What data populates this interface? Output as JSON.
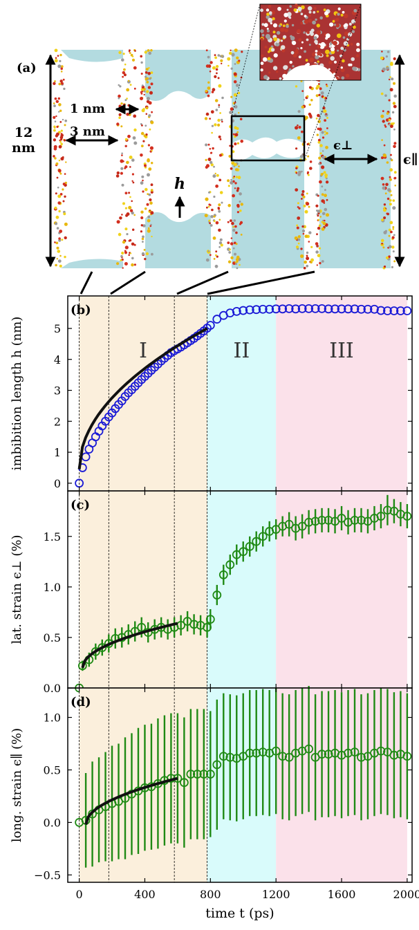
{
  "colors": {
    "regime1": "#fbefdc",
    "regime2": "#d9fbfb",
    "regime3": "#fbe1ea",
    "water": "#b3dbe0",
    "series_b": "#1a1ad6",
    "series_cd": "#1f8a14",
    "fit": "#111111"
  },
  "panel_a": {
    "label": "(a)",
    "height_label_1": "12",
    "height_label_2": "nm",
    "gap_label": "1 nm",
    "width_label": "3 nm",
    "h_label": "h",
    "strain_perp_label": "ϵ⊥",
    "strain_par_label": "ϵ∥"
  },
  "chart_data": [
    {
      "type": "scatter",
      "panel": "(b)",
      "ylabel": "imbibition length h (nm)",
      "ylim": [
        -0.25,
        6.05
      ],
      "yticks": [
        0,
        1,
        2,
        3,
        4,
        5
      ],
      "xlim": [
        -70,
        2030
      ],
      "regimes": [
        {
          "label": "I",
          "x0": 0,
          "x1": 780
        },
        {
          "label": "II",
          "x0": 780,
          "x1": 1200
        },
        {
          "label": "III",
          "x0": 1200,
          "x1": 2000
        }
      ],
      "vlines": [
        0,
        180,
        580,
        780
      ],
      "x": [
        0,
        20,
        40,
        60,
        80,
        100,
        120,
        140,
        160,
        180,
        200,
        220,
        240,
        260,
        280,
        300,
        320,
        340,
        360,
        380,
        400,
        420,
        440,
        460,
        480,
        500,
        520,
        540,
        560,
        580,
        600,
        620,
        640,
        660,
        680,
        700,
        720,
        740,
        760,
        780,
        800,
        840,
        880,
        920,
        960,
        1000,
        1040,
        1080,
        1120,
        1160,
        1200,
        1240,
        1280,
        1320,
        1360,
        1400,
        1440,
        1480,
        1520,
        1560,
        1600,
        1640,
        1680,
        1720,
        1760,
        1800,
        1840,
        1880,
        1920,
        1960,
        2000
      ],
      "y": [
        0.0,
        0.5,
        0.85,
        1.1,
        1.3,
        1.5,
        1.68,
        1.85,
        2.0,
        2.14,
        2.27,
        2.41,
        2.54,
        2.66,
        2.8,
        2.92,
        3.02,
        3.13,
        3.24,
        3.35,
        3.45,
        3.55,
        3.65,
        3.75,
        3.85,
        3.95,
        4.04,
        4.13,
        4.22,
        4.28,
        4.34,
        4.4,
        4.47,
        4.54,
        4.61,
        4.68,
        4.76,
        4.84,
        4.92,
        5.01,
        5.1,
        5.3,
        5.42,
        5.5,
        5.55,
        5.58,
        5.6,
        5.61,
        5.62,
        5.62,
        5.63,
        5.63,
        5.64,
        5.63,
        5.64,
        5.64,
        5.64,
        5.64,
        5.63,
        5.63,
        5.63,
        5.63,
        5.63,
        5.62,
        5.62,
        5.62,
        5.58,
        5.57,
        5.57,
        5.57,
        5.57
      ],
      "fit": {
        "x0": 0,
        "x1": 780,
        "y0": 0.45,
        "y1": 5.0
      }
    },
    {
      "type": "scatter",
      "panel": "(c)",
      "ylabel": "lat. strain ϵ⊥ (%)",
      "ylim": [
        0,
        1.95
      ],
      "yticks": [
        0.0,
        0.5,
        1.0,
        1.5
      ],
      "x": [
        0,
        20,
        60,
        100,
        140,
        180,
        220,
        260,
        300,
        340,
        380,
        420,
        460,
        500,
        540,
        580,
        620,
        660,
        700,
        740,
        780,
        800,
        840,
        880,
        920,
        960,
        1000,
        1040,
        1080,
        1120,
        1160,
        1200,
        1240,
        1280,
        1320,
        1360,
        1400,
        1440,
        1480,
        1520,
        1560,
        1600,
        1640,
        1680,
        1720,
        1760,
        1800,
        1840,
        1880,
        1920,
        1960,
        2000
      ],
      "y": [
        0.0,
        0.22,
        0.28,
        0.36,
        0.4,
        0.44,
        0.49,
        0.5,
        0.53,
        0.56,
        0.6,
        0.55,
        0.58,
        0.6,
        0.58,
        0.6,
        0.62,
        0.66,
        0.63,
        0.62,
        0.6,
        0.68,
        0.92,
        1.12,
        1.22,
        1.32,
        1.35,
        1.4,
        1.45,
        1.5,
        1.55,
        1.57,
        1.6,
        1.62,
        1.58,
        1.6,
        1.64,
        1.65,
        1.66,
        1.66,
        1.65,
        1.68,
        1.64,
        1.66,
        1.66,
        1.65,
        1.68,
        1.7,
        1.76,
        1.75,
        1.72,
        1.7
      ],
      "err": [
        0.0,
        0.05,
        0.07,
        0.08,
        0.08,
        0.09,
        0.1,
        0.1,
        0.1,
        0.1,
        0.1,
        0.1,
        0.1,
        0.1,
        0.1,
        0.1,
        0.1,
        0.1,
        0.1,
        0.1,
        0.1,
        0.1,
        0.1,
        0.1,
        0.1,
        0.1,
        0.1,
        0.1,
        0.1,
        0.1,
        0.1,
        0.1,
        0.1,
        0.12,
        0.12,
        0.12,
        0.12,
        0.12,
        0.12,
        0.12,
        0.12,
        0.12,
        0.12,
        0.12,
        0.12,
        0.12,
        0.12,
        0.12,
        0.15,
        0.12,
        0.12,
        0.12
      ],
      "fit": {
        "x0": 20,
        "x1": 600,
        "y0": 0.2,
        "y1": 0.64
      }
    },
    {
      "type": "scatter",
      "panel": "(d)",
      "ylabel": "long. strain ϵ∥ (%)",
      "xlabel": "time t (ps)",
      "ylim": [
        -0.57,
        1.28
      ],
      "yticks": [
        -0.5,
        0.0,
        0.5,
        1.0
      ],
      "xticks": [
        0,
        400,
        800,
        1200,
        1600,
        2000
      ],
      "x": [
        0,
        40,
        80,
        120,
        160,
        200,
        240,
        280,
        320,
        360,
        400,
        440,
        480,
        520,
        560,
        600,
        640,
        680,
        720,
        760,
        800,
        840,
        880,
        920,
        960,
        1000,
        1040,
        1080,
        1120,
        1160,
        1200,
        1240,
        1280,
        1320,
        1360,
        1400,
        1440,
        1480,
        1520,
        1560,
        1600,
        1640,
        1680,
        1720,
        1760,
        1800,
        1840,
        1880,
        1920,
        1960,
        2000
      ],
      "y": [
        0.0,
        0.02,
        0.08,
        0.12,
        0.15,
        0.18,
        0.2,
        0.23,
        0.27,
        0.3,
        0.33,
        0.34,
        0.37,
        0.4,
        0.42,
        0.42,
        0.38,
        0.46,
        0.46,
        0.46,
        0.46,
        0.55,
        0.63,
        0.62,
        0.61,
        0.63,
        0.66,
        0.66,
        0.67,
        0.66,
        0.68,
        0.63,
        0.62,
        0.66,
        0.68,
        0.7,
        0.62,
        0.65,
        0.65,
        0.66,
        0.64,
        0.66,
        0.67,
        0.62,
        0.63,
        0.66,
        0.68,
        0.67,
        0.64,
        0.65,
        0.63
      ],
      "err": [
        0.0,
        0.45,
        0.5,
        0.5,
        0.52,
        0.55,
        0.55,
        0.58,
        0.58,
        0.6,
        0.6,
        0.6,
        0.62,
        0.62,
        0.62,
        0.62,
        0.62,
        0.62,
        0.62,
        0.62,
        0.6,
        0.62,
        0.6,
        0.6,
        0.6,
        0.6,
        0.6,
        0.6,
        0.6,
        0.6,
        0.6,
        0.6,
        0.6,
        0.6,
        0.6,
        0.6,
        0.6,
        0.6,
        0.6,
        0.6,
        0.6,
        0.6,
        0.6,
        0.6,
        0.6,
        0.6,
        0.6,
        0.6,
        0.6,
        0.6,
        0.6
      ],
      "fit": {
        "x0": 40,
        "x1": 600,
        "y0": -0.02,
        "y1": 0.42
      }
    }
  ]
}
